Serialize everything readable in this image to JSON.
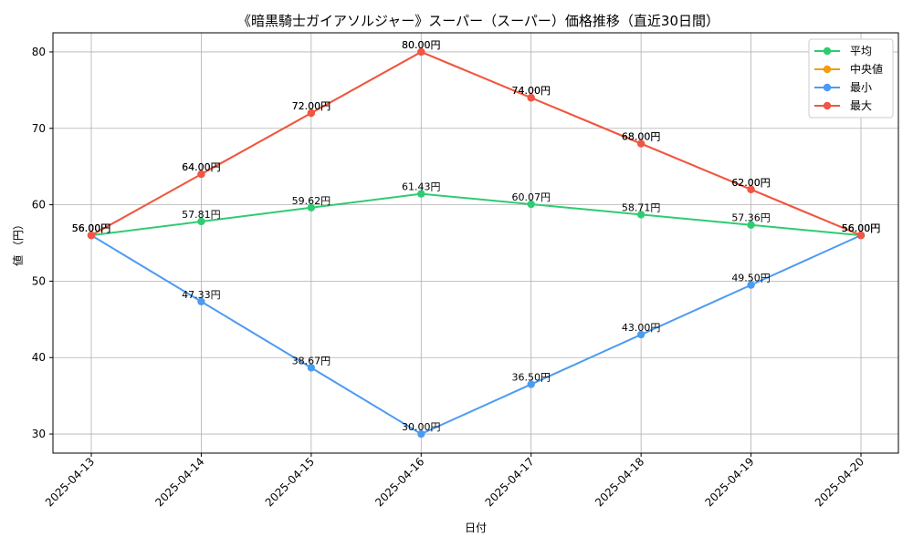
{
  "chart_data": {
    "type": "line",
    "title": "《暗黒騎士ガイアソルジャー》スーパー（スーパー）価格推移（直近30日間）",
    "xlabel": "日付",
    "ylabel": "値 （円）",
    "x": [
      "2025-04-13",
      "2025-04-14",
      "2025-04-15",
      "2025-04-16",
      "2025-04-17",
      "2025-04-18",
      "2025-04-19",
      "2025-04-20"
    ],
    "ylim": [
      27.5,
      82.5
    ],
    "yticks": [
      30,
      40,
      50,
      60,
      70,
      80
    ],
    "grid": true,
    "legend_position": "top-right",
    "series": [
      {
        "name": "平均",
        "color": "#2ecc71",
        "values": [
          56.0,
          57.81,
          59.62,
          61.43,
          60.07,
          58.71,
          57.36,
          56.0
        ],
        "labels": [
          "56.00円",
          "57.81円",
          "59.62円",
          "61.43円",
          "60.07円",
          "58.71円",
          "57.36円",
          "56.00円"
        ]
      },
      {
        "name": "中央値",
        "color": "#f39c12",
        "values": [
          56.0,
          64.0,
          72.0,
          80.0,
          74.0,
          68.0,
          62.0,
          56.0
        ],
        "labels": [
          "56.00円",
          "64.00円",
          "72.00円",
          "80.00円",
          "74.00円",
          "68.00円",
          "62.00円",
          "56.00円"
        ]
      },
      {
        "name": "最小",
        "color": "#4c9bf0",
        "values": [
          56.0,
          47.33,
          38.67,
          30.0,
          36.5,
          43.0,
          49.5,
          56.0
        ],
        "labels": [
          "56.00円",
          "47.33円",
          "38.67円",
          "30.00円",
          "36.50円",
          "43.00円",
          "49.50円",
          "56.00円"
        ]
      },
      {
        "name": "最大",
        "color": "#f05545",
        "values": [
          56.0,
          64.0,
          72.0,
          80.0,
          74.0,
          68.0,
          62.0,
          56.0
        ],
        "labels": [
          "56.00円",
          "64.00円",
          "72.00円",
          "80.00円",
          "74.00円",
          "68.00円",
          "62.00円",
          "56.00円"
        ]
      }
    ]
  }
}
